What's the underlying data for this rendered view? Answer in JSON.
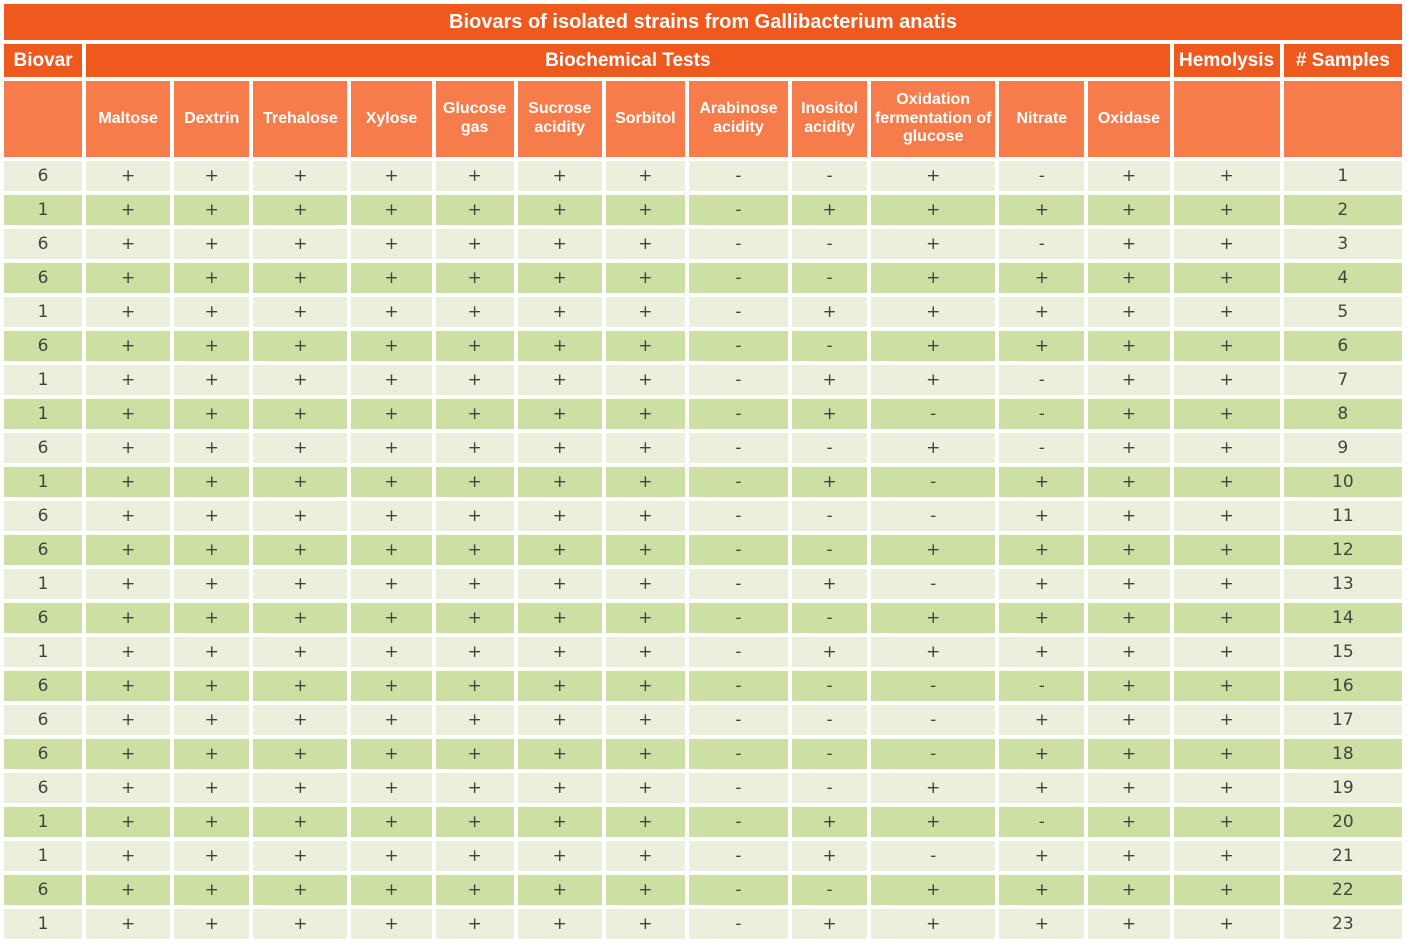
{
  "title": "Biovars of isolated strains from Gallibacterium anatis",
  "header": {
    "biovar_label": "Biovar",
    "group_label": "Biochemical Tests",
    "hemolysis_label": "Hemolysis",
    "samples_label": "# Samples",
    "test_columns": [
      "Maltose",
      "Dextrin",
      "Trehalose",
      "Xylose",
      "Glucose gas",
      "Sucrose acidity",
      "Sorbitol",
      "Arabinose acidity",
      "Inositol acidity",
      "Oxidation fermentation of glucose",
      "Nitrate",
      "Oxidase"
    ]
  },
  "colors": {
    "header_dark_orange": "#F0591E",
    "header_light_orange": "#F67C4B",
    "row_light_green": "#EAF0DC",
    "row_dark_green": "#CDE0A4",
    "data_text": "#3E453E",
    "header_text": "#FFFFFF"
  },
  "chart_data": {
    "type": "table",
    "title": "Biovars of isolated strains from Gallibacterium anatis",
    "columns": [
      "Biovar",
      "Maltose",
      "Dextrin",
      "Trehalose",
      "Xylose",
      "Glucose gas",
      "Sucrose acidity",
      "Sorbitol",
      "Arabinose acidity",
      "Inositol acidity",
      "Oxidation fermentation of glucose",
      "Nitrate",
      "Oxidase",
      "Hemolysis",
      "# Samples"
    ],
    "rows": [
      [
        "6",
        "+",
        "+",
        "+",
        "+",
        "+",
        "+",
        "+",
        "-",
        "-",
        "+",
        "-",
        "+",
        "+",
        "1"
      ],
      [
        "1",
        "+",
        "+",
        "+",
        "+",
        "+",
        "+",
        "+",
        "-",
        "+",
        "+",
        "+",
        "+",
        "+",
        "2"
      ],
      [
        "6",
        "+",
        "+",
        "+",
        "+",
        "+",
        "+",
        "+",
        "-",
        "-",
        "+",
        "-",
        "+",
        "+",
        "3"
      ],
      [
        "6",
        "+",
        "+",
        "+",
        "+",
        "+",
        "+",
        "+",
        "-",
        "-",
        "+",
        "+",
        "+",
        "+",
        "4"
      ],
      [
        "1",
        "+",
        "+",
        "+",
        "+",
        "+",
        "+",
        "+",
        "-",
        "+",
        "+",
        "+",
        "+",
        "+",
        "5"
      ],
      [
        "6",
        "+",
        "+",
        "+",
        "+",
        "+",
        "+",
        "+",
        "-",
        "-",
        "+",
        "+",
        "+",
        "+",
        "6"
      ],
      [
        "1",
        "+",
        "+",
        "+",
        "+",
        "+",
        "+",
        "+",
        "-",
        "+",
        "+",
        "-",
        "+",
        "+",
        "7"
      ],
      [
        "1",
        "+",
        "+",
        "+",
        "+",
        "+",
        "+",
        "+",
        "-",
        "+",
        "-",
        "-",
        "+",
        "+",
        "8"
      ],
      [
        "6",
        "+",
        "+",
        "+",
        "+",
        "+",
        "+",
        "+",
        "-",
        "-",
        "+",
        "-",
        "+",
        "+",
        "9"
      ],
      [
        "1",
        "+",
        "+",
        "+",
        "+",
        "+",
        "+",
        "+",
        "-",
        "+",
        "-",
        "+",
        "+",
        "+",
        "10"
      ],
      [
        "6",
        "+",
        "+",
        "+",
        "+",
        "+",
        "+",
        "+",
        "-",
        "-",
        "-",
        "+",
        "+",
        "+",
        "11"
      ],
      [
        "6",
        "+",
        "+",
        "+",
        "+",
        "+",
        "+",
        "+",
        "-",
        "-",
        "+",
        "+",
        "+",
        "+",
        "12"
      ],
      [
        "1",
        "+",
        "+",
        "+",
        "+",
        "+",
        "+",
        "+",
        "-",
        "+",
        "-",
        "+",
        "+",
        "+",
        "13"
      ],
      [
        "6",
        "+",
        "+",
        "+",
        "+",
        "+",
        "+",
        "+",
        "-",
        "-",
        "+",
        "+",
        "+",
        "+",
        "14"
      ],
      [
        "1",
        "+",
        "+",
        "+",
        "+",
        "+",
        "+",
        "+",
        "-",
        "+",
        "+",
        "+",
        "+",
        "+",
        "15"
      ],
      [
        "6",
        "+",
        "+",
        "+",
        "+",
        "+",
        "+",
        "+",
        "-",
        "-",
        "-",
        "-",
        "+",
        "+",
        "16"
      ],
      [
        "6",
        "+",
        "+",
        "+",
        "+",
        "+",
        "+",
        "+",
        "-",
        "-",
        "-",
        "+",
        "+",
        "+",
        "17"
      ],
      [
        "6",
        "+",
        "+",
        "+",
        "+",
        "+",
        "+",
        "+",
        "-",
        "-",
        "-",
        "+",
        "+",
        "+",
        "18"
      ],
      [
        "6",
        "+",
        "+",
        "+",
        "+",
        "+",
        "+",
        "+",
        "-",
        "-",
        "+",
        "+",
        "+",
        "+",
        "19"
      ],
      [
        "1",
        "+",
        "+",
        "+",
        "+",
        "+",
        "+",
        "+",
        "-",
        "+",
        "+",
        "-",
        "+",
        "+",
        "20"
      ],
      [
        "1",
        "+",
        "+",
        "+",
        "+",
        "+",
        "+",
        "+",
        "-",
        "+",
        "-",
        "+",
        "+",
        "+",
        "21"
      ],
      [
        "6",
        "+",
        "+",
        "+",
        "+",
        "+",
        "+",
        "+",
        "-",
        "-",
        "+",
        "+",
        "+",
        "+",
        "22"
      ],
      [
        "1",
        "+",
        "+",
        "+",
        "+",
        "+",
        "+",
        "+",
        "-",
        "+",
        "+",
        "+",
        "+",
        "+",
        "23"
      ]
    ]
  }
}
